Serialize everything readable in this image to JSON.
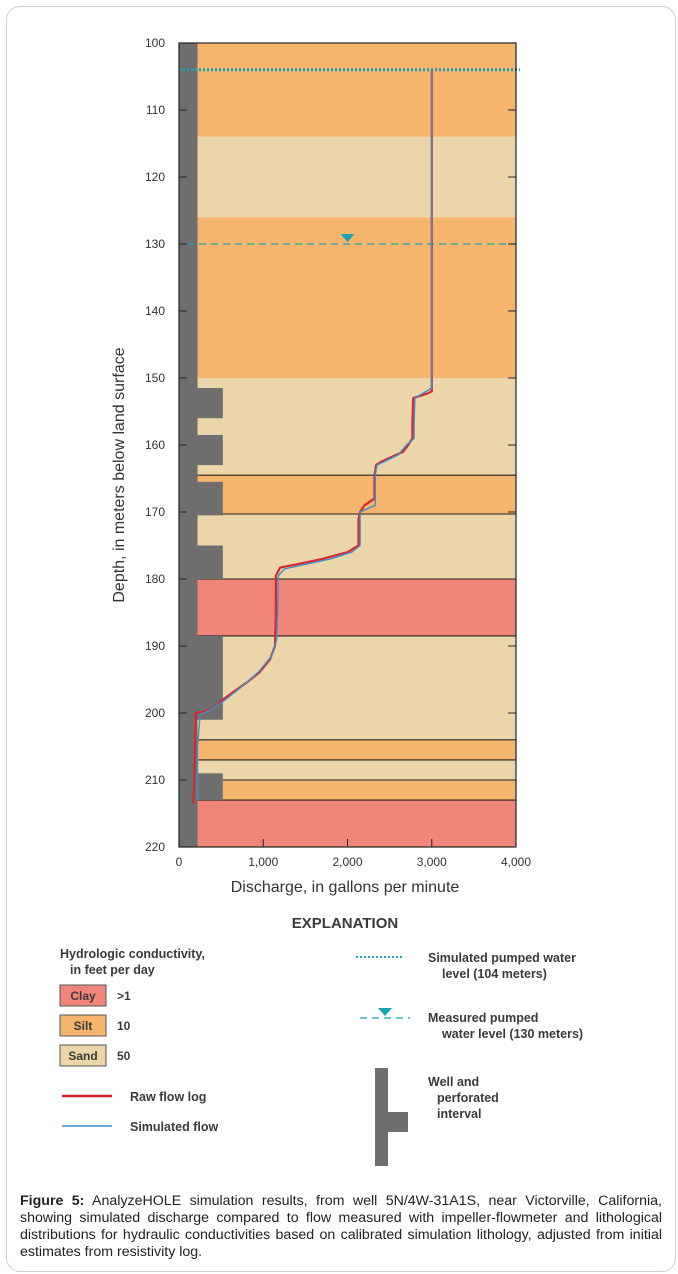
{
  "chart_data": {
    "type": "line",
    "xlabel": "Discharge, in gallons per minute",
    "ylabel": "Depth, in meters below land surface",
    "xlim": [
      0,
      4000
    ],
    "ylim": [
      100,
      220
    ],
    "y_inverted": true,
    "x_ticks": [
      0,
      1000,
      2000,
      3000,
      4000
    ],
    "x_tick_labels": [
      "0",
      "1,000",
      "2,000",
      "3,000",
      "4,000"
    ],
    "y_ticks": [
      100,
      110,
      120,
      130,
      140,
      150,
      160,
      170,
      180,
      190,
      200,
      210,
      220
    ],
    "y_tick_labels": [
      "100",
      "110",
      "120",
      "130",
      "140",
      "150",
      "160",
      "170",
      "180",
      "190",
      "200",
      "210",
      "220"
    ],
    "lithology_layers": [
      {
        "top": 100,
        "bottom": 114,
        "type": "Silt"
      },
      {
        "top": 114,
        "bottom": 126,
        "type": "Sand"
      },
      {
        "top": 126,
        "bottom": 150,
        "type": "Silt"
      },
      {
        "top": 150,
        "bottom": 164.5,
        "type": "Sand"
      },
      {
        "top": 164.5,
        "bottom": 170.3,
        "type": "Silt"
      },
      {
        "top": 170.3,
        "bottom": 180,
        "type": "Sand"
      },
      {
        "top": 180,
        "bottom": 188.5,
        "type": "Clay"
      },
      {
        "top": 188.5,
        "bottom": 204,
        "type": "Sand"
      },
      {
        "top": 204,
        "bottom": 207,
        "type": "Silt"
      },
      {
        "top": 207,
        "bottom": 210,
        "type": "Sand"
      },
      {
        "top": 210,
        "bottom": 213,
        "type": "Silt"
      },
      {
        "top": 213,
        "bottom": 220,
        "type": "Clay"
      }
    ],
    "lithology_colors": {
      "Clay": "#f0857a",
      "Silt": "#f6b56c",
      "Sand": "#ead6a8"
    },
    "well_casing_width_gpm": 220,
    "perforated_intervals": [
      {
        "top": 151.5,
        "bottom": 156
      },
      {
        "top": 158.5,
        "bottom": 163
      },
      {
        "top": 165.5,
        "bottom": 170.5
      },
      {
        "top": 175,
        "bottom": 180
      },
      {
        "top": 188.5,
        "bottom": 201
      },
      {
        "top": 209,
        "bottom": 213
      }
    ],
    "perforation_width_gpm": 520,
    "simulated_pumped_water_level": 104,
    "measured_pumped_water_level": 130,
    "series": [
      {
        "name": "Raw flow log",
        "color": "#d9262e",
        "points": [
          [
            3000,
            104
          ],
          [
            3000,
            152
          ],
          [
            2950,
            152.3
          ],
          [
            2780,
            153
          ],
          [
            2770,
            157
          ],
          [
            2770,
            159
          ],
          [
            2720,
            160
          ],
          [
            2660,
            161
          ],
          [
            2400,
            162.5
          ],
          [
            2340,
            163
          ],
          [
            2320,
            164.5
          ],
          [
            2320,
            168
          ],
          [
            2200,
            169
          ],
          [
            2150,
            170
          ],
          [
            2130,
            171
          ],
          [
            2130,
            175
          ],
          [
            2000,
            176
          ],
          [
            1700,
            177
          ],
          [
            1400,
            177.8
          ],
          [
            1200,
            178.3
          ],
          [
            1150,
            179.5
          ],
          [
            1150,
            185
          ],
          [
            1140,
            190
          ],
          [
            1080,
            192
          ],
          [
            950,
            194
          ],
          [
            800,
            195.5
          ],
          [
            650,
            196.8
          ],
          [
            520,
            198
          ],
          [
            400,
            199.3
          ],
          [
            300,
            199.8
          ],
          [
            200,
            200
          ],
          [
            190,
            205
          ],
          [
            180,
            210
          ],
          [
            170,
            213.5
          ]
        ]
      },
      {
        "name": "Simulated flow",
        "color": "#3d8fd0",
        "points": [
          [
            3000,
            104
          ],
          [
            3000,
            151.5
          ],
          [
            2800,
            153
          ],
          [
            2790,
            157
          ],
          [
            2790,
            159
          ],
          [
            2700,
            160
          ],
          [
            2600,
            161.5
          ],
          [
            2350,
            163
          ],
          [
            2330,
            164.5
          ],
          [
            2330,
            169
          ],
          [
            2150,
            170
          ],
          [
            2150,
            175
          ],
          [
            2050,
            176
          ],
          [
            1800,
            177
          ],
          [
            1500,
            177.8
          ],
          [
            1250,
            178.5
          ],
          [
            1180,
            179.5
          ],
          [
            1170,
            185
          ],
          [
            1160,
            189
          ],
          [
            1100,
            191.5
          ],
          [
            950,
            193.8
          ],
          [
            800,
            195.5
          ],
          [
            650,
            197
          ],
          [
            500,
            198.5
          ],
          [
            350,
            199.7
          ],
          [
            250,
            200.2
          ],
          [
            220,
            205
          ],
          [
            220,
            213
          ]
        ]
      }
    ]
  },
  "explanation": {
    "title": "EXPLANATION",
    "conductivity_title_1": "Hydrologic conductivity,",
    "conductivity_title_2": "in feet per day",
    "clay_label": "Clay",
    "clay_value": ">1",
    "silt_label": "Silt",
    "silt_value": "10",
    "sand_label": "Sand",
    "sand_value": "50",
    "raw_flow_label": "Raw flow log",
    "simulated_flow_label": "Simulated flow",
    "sim_level_line1": "Simulated pumped water",
    "sim_level_line2": "level (104 meters)",
    "meas_level_line1": "Measured pumped",
    "meas_level_line2": "water level (130 meters)",
    "well_line1": "Well and",
    "well_line2": "perforated",
    "well_line3": "interval"
  },
  "colors": {
    "raw_flow": "#d9262e",
    "simulated_flow": "#3d8fd0",
    "water_level": "#1aa3b5",
    "well": "#6e6e6e"
  },
  "caption": {
    "label": "Figure 5:",
    "text": " AnalyzeHOLE simulation results, from well 5N/4W-31A1S, near Victorville, California, showing simulated discharge compared to flow measured with impeller-flowmeter and lithological distributions for hydraulic conductivities based on calibrated simulation lithology, adjusted from initial estimates from resistivity log."
  }
}
